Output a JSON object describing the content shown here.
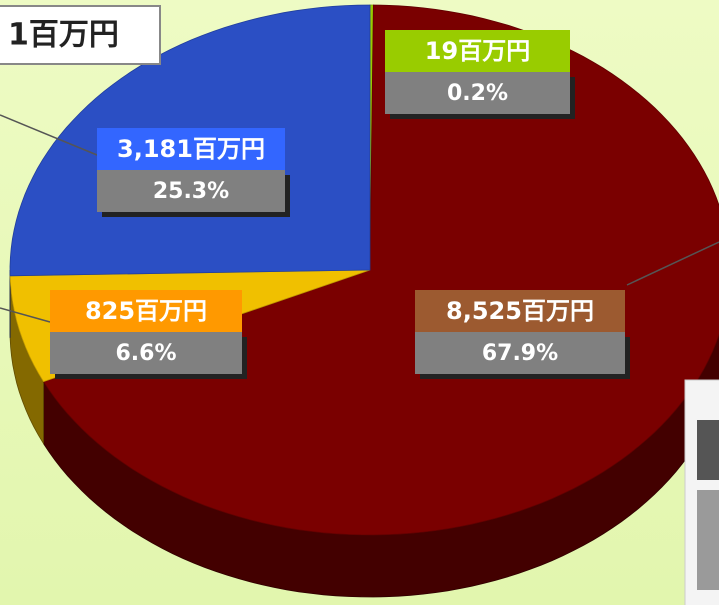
{
  "chart_data": {
    "type": "pie",
    "title": "1百万円",
    "values": [
      19,
      8525,
      825,
      3181
    ],
    "value_labels": [
      "19百万円",
      "8,525百万円",
      "825百万円",
      "3,181百万円"
    ],
    "percentages": [
      0.2,
      67.9,
      6.6,
      25.3
    ],
    "percent_labels": [
      "0.2%",
      "67.9%",
      "6.6%",
      "25.3%"
    ],
    "colors": [
      "#99cc00",
      "#7a0000",
      "#f0c000",
      "#2b4fc4"
    ],
    "label_colors": [
      "#99cc00",
      "#9c5a30",
      "#ff9900",
      "#3366ff"
    ]
  }
}
